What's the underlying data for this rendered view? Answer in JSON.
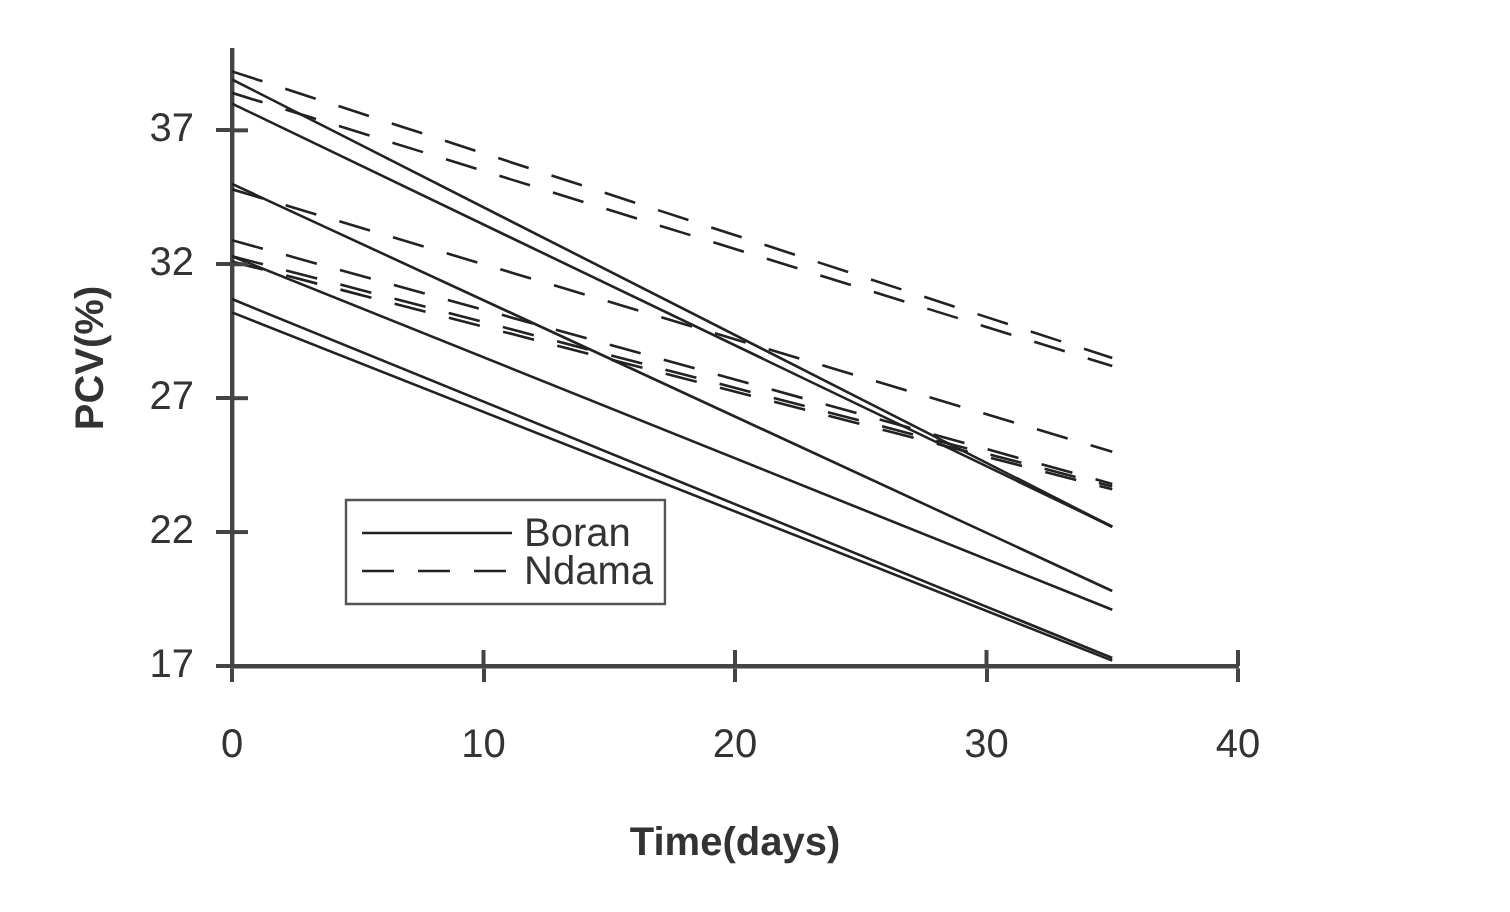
{
  "chart_data": {
    "type": "line",
    "xlabel": "Time(days)",
    "ylabel": "PCV(%)",
    "x": [
      0,
      35
    ],
    "series": [
      {
        "name": "Boran",
        "color": "#222222",
        "line_style": "solid",
        "values": [
          38.9,
          22.2
        ]
      },
      {
        "color": "#222222",
        "line_style": "solid",
        "values": [
          38.0,
          22.2
        ]
      },
      {
        "color": "#222222",
        "line_style": "solid",
        "values": [
          35.0,
          19.8
        ]
      },
      {
        "color": "#222222",
        "line_style": "solid",
        "values": [
          32.3,
          19.1
        ]
      },
      {
        "color": "#222222",
        "line_style": "solid",
        "values": [
          30.7,
          17.3
        ]
      },
      {
        "color": "#222222",
        "line_style": "solid",
        "values": [
          30.2,
          17.2
        ]
      },
      {
        "name": "Ndama",
        "color": "#222222",
        "line_style": "dashed",
        "values": [
          39.2,
          28.5
        ]
      },
      {
        "color": "#222222",
        "line_style": "dashed",
        "values": [
          38.4,
          28.2
        ]
      },
      {
        "color": "#222222",
        "line_style": "dashed",
        "values": [
          34.8,
          25.0
        ]
      },
      {
        "color": "#222222",
        "line_style": "dashed",
        "values": [
          32.9,
          23.8
        ]
      },
      {
        "color": "#222222",
        "line_style": "dashed",
        "values": [
          32.3,
          23.7
        ]
      },
      {
        "color": "#222222",
        "line_style": "dashed",
        "values": [
          32.1,
          23.6
        ]
      }
    ],
    "xlim": [
      0,
      40
    ],
    "ylim": [
      17,
      40
    ],
    "xticks": [
      0,
      10,
      20,
      30,
      40
    ],
    "yticks": [
      17,
      22,
      27,
      32,
      37
    ],
    "grid": false,
    "legend": "bottom left",
    "marker": "none"
  }
}
